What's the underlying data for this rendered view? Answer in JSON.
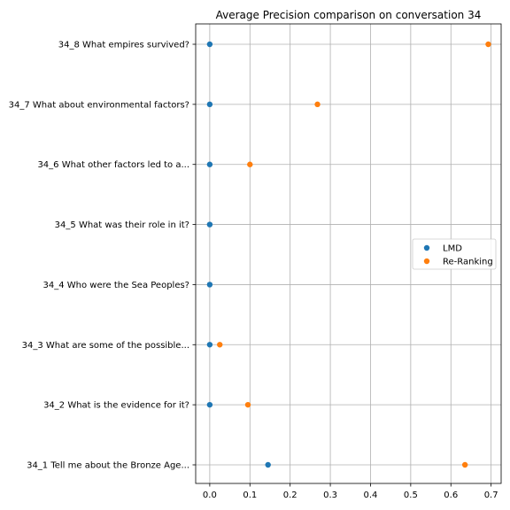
{
  "chart_data": {
    "type": "scatter",
    "title": "Average Precision comparison on conversation 34",
    "xlabel": "",
    "ylabel": "",
    "xlim": [
      -0.035,
      0.725
    ],
    "xticks": [
      "0.0",
      "0.1",
      "0.2",
      "0.3",
      "0.4",
      "0.5",
      "0.6",
      "0.7"
    ],
    "xtick_values": [
      0.0,
      0.1,
      0.2,
      0.3,
      0.4,
      0.5,
      0.6,
      0.7
    ],
    "categories": [
      "34_1 Tell me about the Bronze Age...",
      "34_2 What is the evidence for it?",
      "34_3 What are some of the possible...",
      "34_4 Who were the Sea Peoples?",
      "34_5 What was their role in it?",
      "34_6 What other factors led to a...",
      "34_7 What about environmental factors?",
      "34_8 What empires survived?"
    ],
    "series": [
      {
        "name": "LMD",
        "color": "#1f77b4",
        "values": [
          0.145,
          0.0,
          0.0,
          0.0,
          0.0,
          0.0,
          0.0,
          0.0
        ]
      },
      {
        "name": "Re-Ranking",
        "color": "#ff7f0e",
        "values": [
          0.635,
          0.095,
          0.025,
          null,
          null,
          0.1,
          0.268,
          0.693
        ]
      }
    ],
    "grid": true,
    "legend_position": "center-right"
  }
}
